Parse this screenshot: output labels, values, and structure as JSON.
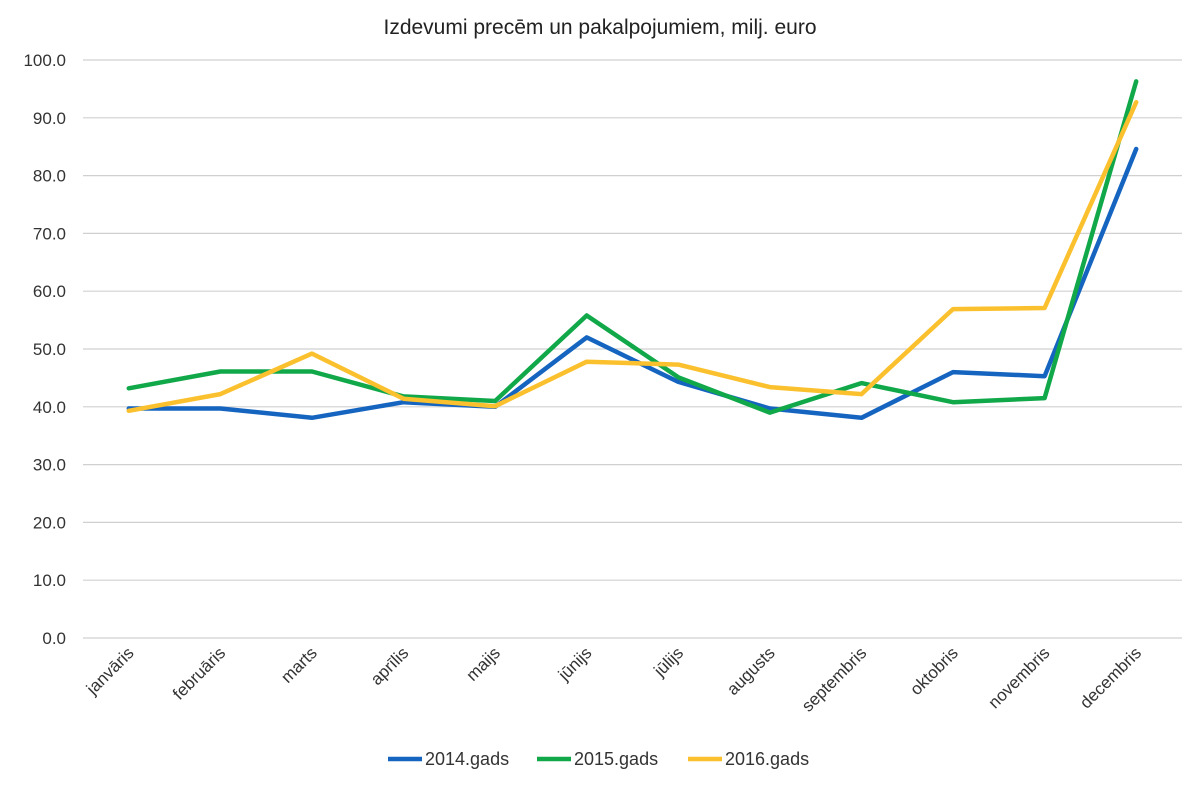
{
  "chart_data": {
    "type": "line",
    "title": "Izdevumi precēm un pakalpojumiem, milj. euro",
    "xlabel": "",
    "ylabel": "",
    "ylim": [
      0,
      100
    ],
    "y_tick_step": 10,
    "y_tick_labels": [
      "0.0",
      "10.0",
      "20.0",
      "30.0",
      "40.0",
      "50.0",
      "60.0",
      "70.0",
      "80.0",
      "90.0",
      "100.0"
    ],
    "grid": true,
    "legend_position": "bottom",
    "categories": [
      "janvāris",
      "februāris",
      "marts",
      "aprīlis",
      "maijs",
      "jūnijs",
      "jūlijs",
      "augusts",
      "septembris",
      "oktobris",
      "novembris",
      "decembris"
    ],
    "series": [
      {
        "name": "2014.gads",
        "color": "#1565c0",
        "values": [
          39.7,
          39.7,
          38.1,
          40.8,
          40.0,
          52.0,
          44.3,
          39.7,
          38.1,
          46.0,
          45.3,
          84.6
        ]
      },
      {
        "name": "2015.gads",
        "color": "#11a84a",
        "values": [
          43.2,
          46.1,
          46.1,
          41.8,
          41.0,
          55.8,
          45.1,
          39.0,
          44.1,
          40.8,
          41.5,
          96.3
        ]
      },
      {
        "name": "2016.gads",
        "color": "#fbc02d",
        "values": [
          39.3,
          42.2,
          49.2,
          41.4,
          40.1,
          47.8,
          47.3,
          43.4,
          42.2,
          56.9,
          57.1,
          92.7
        ]
      }
    ]
  }
}
